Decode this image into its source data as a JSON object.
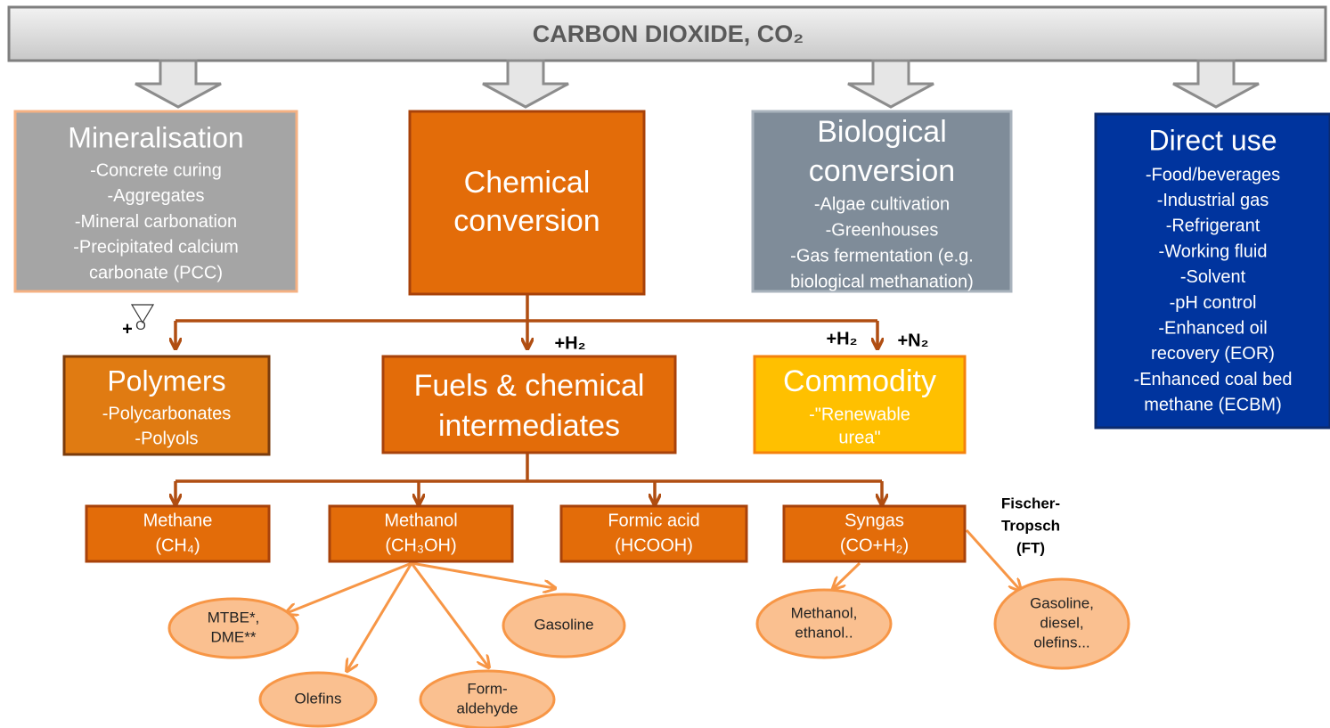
{
  "header": {
    "title": "CARBON DIOXIDE, CO₂"
  },
  "categories": [
    {
      "title": [
        "Mineralisation"
      ],
      "items": [
        "-Concrete curing",
        "-Aggregates",
        "-Mineral carbonation",
        "-Precipitated calcium",
        "carbonate (PCC)"
      ]
    },
    {
      "title": [
        "Chemical",
        "conversion"
      ]
    },
    {
      "title": [
        "Biological",
        "conversion"
      ],
      "items": [
        "-Algae cultivation",
        "-Greenhouses",
        "-Gas fermentation (e.g.",
        "biological methanation)"
      ]
    },
    {
      "title": [
        "Direct use"
      ],
      "items": [
        "-Food/beverages",
        "-Industrial gas",
        "-Refrigerant",
        "-Working fluid",
        "-Solvent",
        "-pH control",
        "-Enhanced oil",
        "recovery (EOR)",
        "-Enhanced coal bed",
        "methane (ECBM)"
      ]
    }
  ],
  "intermediates": [
    {
      "title": [
        "Polymers"
      ],
      "items": [
        "-Polycarbonates",
        "-Polyols"
      ]
    },
    {
      "title": [
        "Fuels & chemical",
        "intermediates"
      ]
    },
    {
      "title": [
        "Commodity"
      ],
      "items": [
        "-\"Renewable",
        "urea\""
      ]
    }
  ],
  "reagents": {
    "epoxide": [
      "+",
      "O"
    ],
    "fuels": "+H₂",
    "commodity": [
      "+H₂",
      "+N₂"
    ]
  },
  "products": [
    {
      "lines": [
        "Methane",
        "(CH₄)"
      ]
    },
    {
      "lines": [
        "Methanol",
        "(CH₃OH)"
      ]
    },
    {
      "lines": [
        "Formic acid",
        "(HCOOH)"
      ]
    },
    {
      "lines": [
        "Syngas",
        "(CO+H₂)"
      ]
    }
  ],
  "derivatives": [
    {
      "lines": [
        "MTBE*,",
        "DME**"
      ]
    },
    {
      "lines": [
        "Gasoline"
      ]
    },
    {
      "lines": [
        "Olefins"
      ]
    },
    {
      "lines": [
        "Form-",
        "aldehyde"
      ]
    },
    {
      "lines": [
        "Methanol,",
        "ethanol.."
      ]
    },
    {
      "lines": [
        "Gasoline,",
        "diesel,",
        "olefins..."
      ]
    }
  ],
  "fischer_tropsch": [
    "Fischer-",
    "Tropsch",
    "(FT)"
  ]
}
